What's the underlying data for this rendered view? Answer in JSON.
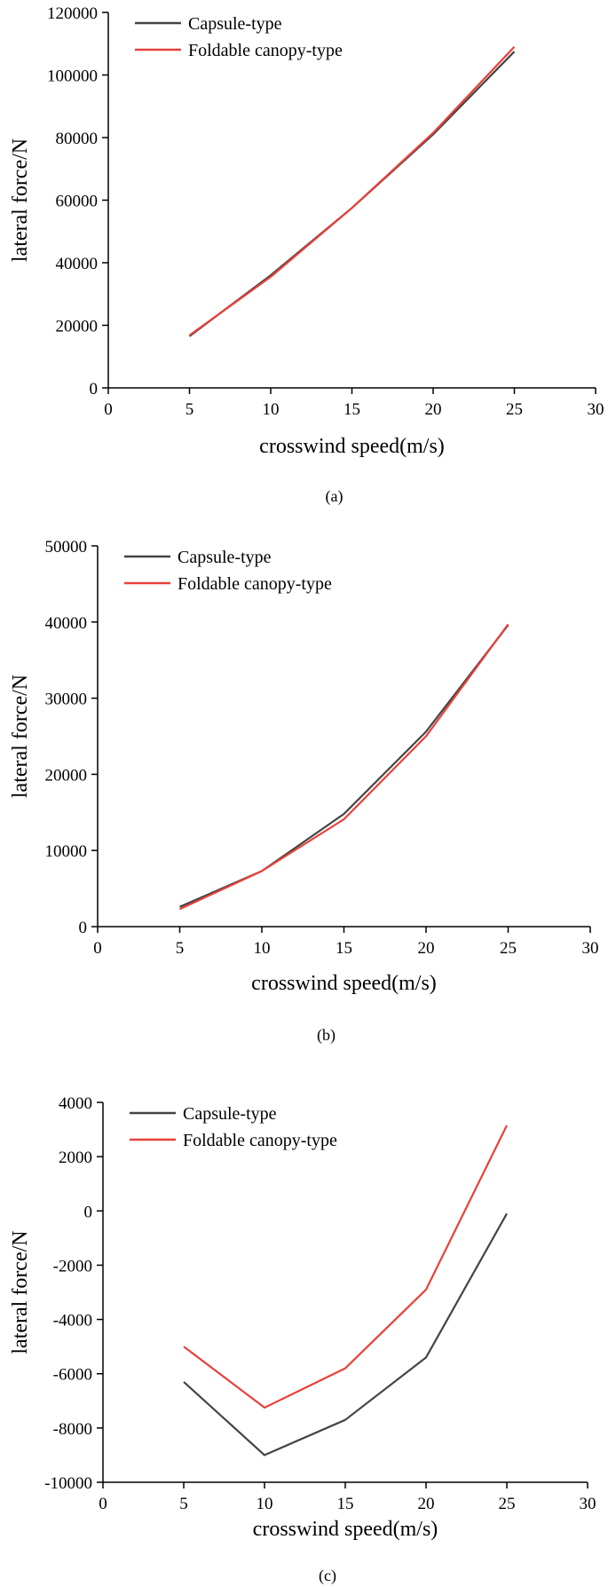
{
  "colors": {
    "capsule": "#444444",
    "canopy": "#e8403a"
  },
  "chart_data": [
    {
      "type": "line",
      "caption": "(a)",
      "xlabel": "crosswind speed(m/s)",
      "ylabel": "lateral force/N",
      "xlim": [
        0,
        30
      ],
      "ylim": [
        0,
        120000
      ],
      "xticks": [
        0,
        5,
        10,
        15,
        20,
        25,
        30
      ],
      "yticks": [
        0,
        20000,
        40000,
        60000,
        80000,
        100000,
        120000
      ],
      "legend": "top-left",
      "x": [
        5,
        10,
        15,
        20,
        25
      ],
      "series": [
        {
          "name": "Capsule-type",
          "color": "#444444",
          "values": [
            16500,
            36000,
            57500,
            81000,
            107500
          ]
        },
        {
          "name": "Foldable canopy-type",
          "color": "#e8403a",
          "values": [
            16800,
            35500,
            57500,
            81500,
            109000
          ]
        }
      ]
    },
    {
      "type": "line",
      "caption": "(b)",
      "xlabel": "crosswind speed(m/s)",
      "ylabel": "lateral force/N",
      "xlim": [
        0,
        30
      ],
      "ylim": [
        0,
        50000
      ],
      "xticks": [
        0,
        5,
        10,
        15,
        20,
        25,
        30
      ],
      "yticks": [
        0,
        10000,
        20000,
        30000,
        40000,
        50000
      ],
      "legend": "top-left",
      "x": [
        5,
        10,
        15,
        20,
        25
      ],
      "series": [
        {
          "name": "Capsule-type",
          "color": "#444444",
          "values": [
            2600,
            7300,
            14800,
            25600,
            39600
          ]
        },
        {
          "name": "Foldable canopy-type",
          "color": "#e8403a",
          "values": [
            2300,
            7300,
            14100,
            25000,
            39700
          ]
        }
      ]
    },
    {
      "type": "line",
      "caption": "(c)",
      "xlabel": "crosswind speed(m/s)",
      "ylabel": "lateral force/N",
      "xlim": [
        0,
        30
      ],
      "ylim": [
        -10000,
        4000
      ],
      "xticks": [
        0,
        5,
        10,
        15,
        20,
        25,
        30
      ],
      "yticks": [
        -10000,
        -8000,
        -6000,
        -4000,
        -2000,
        0,
        2000,
        4000
      ],
      "legend": "top-left",
      "x": [
        5,
        10,
        15,
        20,
        25
      ],
      "series": [
        {
          "name": "Capsule-type",
          "color": "#444444",
          "values": [
            -6300,
            -9000,
            -7700,
            -5400,
            -100
          ]
        },
        {
          "name": "Foldable canopy-type",
          "color": "#e8403a",
          "values": [
            -5000,
            -7250,
            -5800,
            -2900,
            3150
          ]
        }
      ]
    }
  ]
}
